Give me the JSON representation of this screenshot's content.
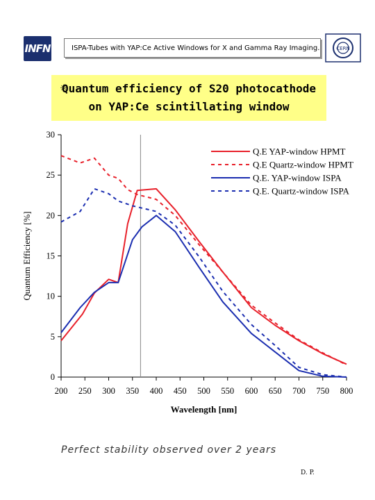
{
  "header": {
    "logo_text": "INFN",
    "title": "ISPA-Tubes with YAP:Ce Active Windows for X and Gamma Ray Imaging.",
    "right_logo_text": "CERN"
  },
  "slide_title": {
    "bullet": "☼",
    "line1": "Quantum efficiency of S20 photocathode",
    "line2": "on YAP:Ce scintillating window"
  },
  "colors": {
    "title_bg": "#ffff88",
    "red": "#e8202a",
    "blue": "#1a2db0"
  },
  "chart_data": {
    "type": "line",
    "xlabel": "Wavelength [nm]",
    "ylabel": "Quantum Efficiency [%]",
    "xlim": [
      200,
      800
    ],
    "ylim": [
      0,
      30
    ],
    "xticks": [
      200,
      250,
      300,
      350,
      400,
      450,
      500,
      550,
      600,
      650,
      700,
      750,
      800
    ],
    "yticks": [
      0,
      5,
      10,
      15,
      20,
      25,
      30
    ],
    "grid": false,
    "legend_position": "top-right",
    "reference_line_x": 367,
    "series": [
      {
        "name": "Q.E YAP-window HPMT",
        "color": "#e8202a",
        "dash": "solid",
        "points": [
          [
            200,
            4.5
          ],
          [
            245,
            7.8
          ],
          [
            270,
            10.4
          ],
          [
            300,
            12.1
          ],
          [
            320,
            11.7
          ],
          [
            340,
            19.0
          ],
          [
            360,
            23.1
          ],
          [
            400,
            23.3
          ],
          [
            440,
            20.7
          ],
          [
            490,
            16.8
          ],
          [
            540,
            13.0
          ],
          [
            600,
            8.6
          ],
          [
            650,
            6.4
          ],
          [
            700,
            4.5
          ],
          [
            750,
            2.9
          ],
          [
            800,
            1.6
          ]
        ]
      },
      {
        "name": "Q.E Quartz-window HPMT",
        "color": "#e8202a",
        "dash": "dashed",
        "points": [
          [
            200,
            27.4
          ],
          [
            240,
            26.5
          ],
          [
            270,
            27.1
          ],
          [
            300,
            25.0
          ],
          [
            320,
            24.6
          ],
          [
            340,
            23.2
          ],
          [
            360,
            22.6
          ],
          [
            400,
            22.0
          ],
          [
            440,
            20.0
          ],
          [
            490,
            16.4
          ],
          [
            540,
            13.0
          ],
          [
            600,
            8.9
          ],
          [
            650,
            6.7
          ],
          [
            700,
            4.6
          ],
          [
            750,
            3.0
          ],
          [
            800,
            1.5
          ]
        ]
      },
      {
        "name": "Q.E. YAP-window ISPA",
        "color": "#1a2db0",
        "dash": "solid",
        "points": [
          [
            200,
            5.5
          ],
          [
            240,
            8.6
          ],
          [
            270,
            10.5
          ],
          [
            300,
            11.7
          ],
          [
            320,
            11.7
          ],
          [
            350,
            17.0
          ],
          [
            370,
            18.6
          ],
          [
            400,
            20.0
          ],
          [
            440,
            18.0
          ],
          [
            490,
            13.6
          ],
          [
            540,
            9.3
          ],
          [
            600,
            5.4
          ],
          [
            650,
            3.1
          ],
          [
            700,
            0.8
          ],
          [
            750,
            0.1
          ],
          [
            800,
            0.0
          ]
        ]
      },
      {
        "name": "Q.E. Quartz-window ISPA",
        "color": "#1a2db0",
        "dash": "dashed",
        "points": [
          [
            200,
            19.2
          ],
          [
            240,
            20.5
          ],
          [
            270,
            23.3
          ],
          [
            300,
            22.7
          ],
          [
            320,
            21.8
          ],
          [
            350,
            21.2
          ],
          [
            400,
            20.5
          ],
          [
            440,
            18.8
          ],
          [
            490,
            14.9
          ],
          [
            540,
            10.6
          ],
          [
            600,
            6.5
          ],
          [
            650,
            3.9
          ],
          [
            700,
            1.2
          ],
          [
            750,
            0.3
          ],
          [
            800,
            0.0
          ]
        ]
      }
    ]
  },
  "footer": {
    "caption": "Perfect stability observed over 2 years",
    "author": "D. P."
  }
}
